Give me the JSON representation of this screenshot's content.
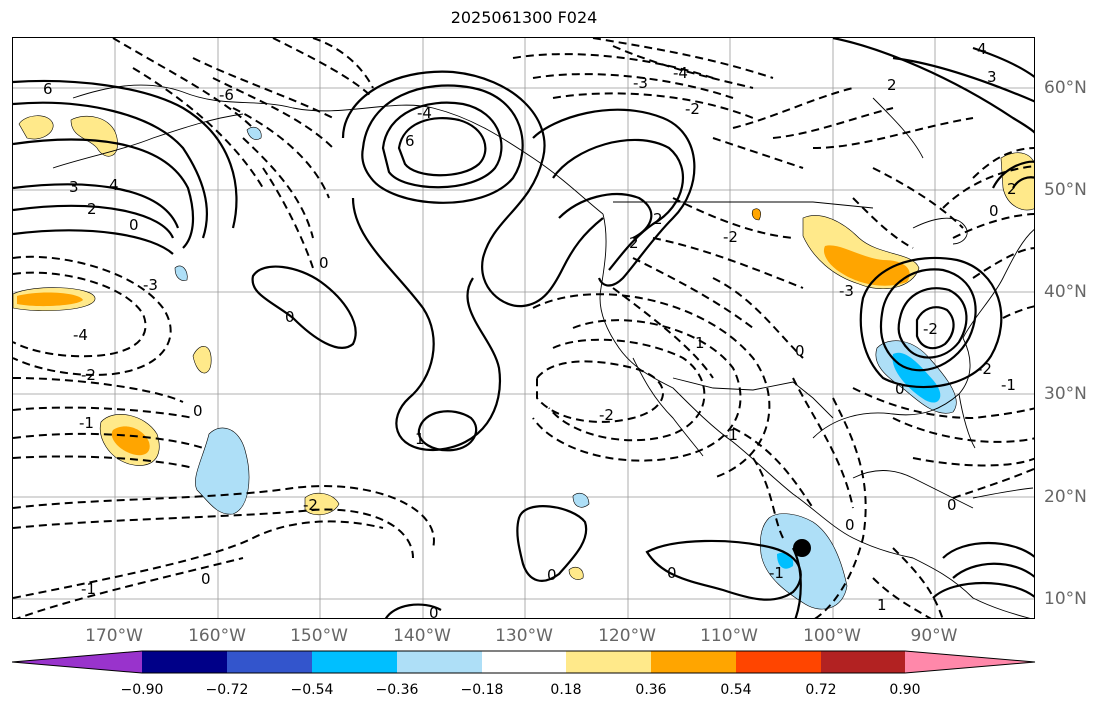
{
  "title": "2025061300 F024",
  "map": {
    "lon_labels": [
      "170°W",
      "160°W",
      "150°W",
      "140°W",
      "130°W",
      "120°W",
      "110°W",
      "100°W",
      "90°W"
    ],
    "lat_labels": [
      "60°N",
      "50°N",
      "40°N",
      "30°N",
      "20°N",
      "10°N"
    ],
    "contour_labels": [
      "6",
      "-4",
      "3",
      "-2",
      "2",
      "-4",
      "6",
      "4",
      "0",
      "-6",
      "2",
      "-3",
      "3",
      "4",
      "2",
      "0",
      "2",
      "1",
      "0",
      "-2",
      "-2",
      "-1",
      "0",
      "-3",
      "-4",
      "-2",
      "-1",
      "0",
      "-3",
      "-2",
      "-2",
      "0",
      "0",
      "1",
      "-1",
      "0",
      "2",
      "0",
      "-2",
      "0",
      "1",
      "0",
      "-1",
      "0",
      "-1",
      "0"
    ],
    "shading_colors": {
      "neg_0_18": "#aedff7",
      "neg_0_36": "#00bfff",
      "pos_0_18": "#ffe98a",
      "pos_0_36": "#ffa500"
    },
    "storm_marker": "filled-circle"
  },
  "colorbar": {
    "colors": [
      "#9933cc",
      "#000088",
      "#3355cc",
      "#00bfff",
      "#aedff7",
      "#ffffff",
      "#ffe98a",
      "#ffa500",
      "#ff4500",
      "#b22222",
      "#ff88aa"
    ],
    "tick_labels": [
      "−0.90",
      "−0.72",
      "−0.54",
      "−0.36",
      "−0.18",
      "0.18",
      "0.36",
      "0.54",
      "0.72",
      "0.90"
    ]
  }
}
